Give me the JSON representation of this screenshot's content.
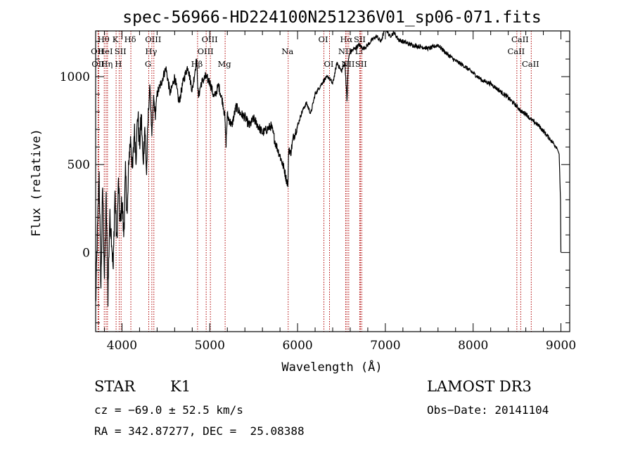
{
  "chart_data": {
    "type": "line",
    "title": "spec-56966-HD224100N251236V01_sp06-071.fits",
    "xlabel": "Wavelength (Å)",
    "ylabel": "Flux (relative)",
    "xlim": [
      3700,
      9100
    ],
    "ylim": [
      -450,
      1260
    ],
    "x_ticks": [
      4000,
      5000,
      6000,
      7000,
      8000,
      9000
    ],
    "y_ticks": [
      0,
      500,
      1000
    ],
    "grid": false,
    "series": [
      {
        "x": [
          3700,
          3720,
          3740,
          3760,
          3780,
          3800,
          3820,
          3840,
          3860,
          3880,
          3900,
          3920,
          3940,
          3960,
          3980,
          4000,
          4020,
          4040,
          4060,
          4080,
          4100,
          4120,
          4140,
          4160,
          4180,
          4200,
          4220,
          4240,
          4260,
          4280,
          4300,
          4320,
          4340,
          4360,
          4380,
          4400,
          4450,
          4500,
          4550,
          4600,
          4650,
          4700,
          4750,
          4800,
          4850,
          4870,
          4900,
          4950,
          5000,
          5050,
          5100,
          5150,
          5170,
          5185,
          5200,
          5250,
          5300,
          5350,
          5400,
          5450,
          5500,
          5550,
          5600,
          5650,
          5700,
          5750,
          5800,
          5850,
          5870,
          5890,
          5900,
          5920,
          5950,
          6000,
          6050,
          6100,
          6150,
          6200,
          6250,
          6300,
          6350,
          6400,
          6450,
          6500,
          6540,
          6563,
          6580,
          6600,
          6650,
          6700,
          6750,
          6800,
          6850,
          6900,
          6950,
          7000,
          7050,
          7100,
          7150,
          7200,
          7300,
          7400,
          7500,
          7600,
          7700,
          7800,
          7900,
          8000,
          8100,
          8200,
          8300,
          8400,
          8500,
          8550,
          8600,
          8650,
          8700,
          8750,
          8800,
          8850,
          8900,
          8950,
          8980,
          8995,
          9000
        ],
        "values": [
          -300,
          100,
          450,
          -200,
          380,
          -150,
          300,
          -250,
          200,
          100,
          -100,
          350,
          50,
          400,
          150,
          300,
          100,
          450,
          200,
          550,
          650,
          450,
          700,
          550,
          800,
          600,
          780,
          500,
          720,
          450,
          800,
          950,
          650,
          880,
          780,
          900,
          970,
          1050,
          900,
          1000,
          850,
          980,
          1060,
          920,
          1100,
          880,
          960,
          1000,
          970,
          880,
          950,
          850,
          780,
          620,
          780,
          720,
          830,
          790,
          770,
          720,
          760,
          720,
          680,
          700,
          720,
          620,
          550,
          470,
          420,
          390,
          600,
          560,
          650,
          720,
          800,
          850,
          790,
          900,
          940,
          980,
          1000,
          960,
          1080,
          1030,
          1080,
          860,
          1100,
          1140,
          1160,
          1180,
          1160,
          1180,
          1210,
          1230,
          1200,
          1280,
          1230,
          1250,
          1210,
          1200,
          1180,
          1170,
          1160,
          1180,
          1130,
          1090,
          1060,
          1020,
          980,
          960,
          920,
          880,
          830,
          800,
          790,
          760,
          740,
          720,
          690,
          660,
          630,
          600,
          560,
          300,
          0
        ]
      }
    ],
    "lines": [
      {
        "label": "Hθ",
        "x": 3798,
        "row": 1
      },
      {
        "label": "OII",
        "x": 3727,
        "row": 2
      },
      {
        "label": "OII",
        "x": 3736,
        "row": 3
      },
      {
        "label": "HeI",
        "x": 3819,
        "row": 2
      },
      {
        "label": "Hη",
        "x": 3835,
        "row": 3
      },
      {
        "label": "K",
        "x": 3933,
        "row": 1
      },
      {
        "label": "SII",
        "x": 3990,
        "row": 2
      },
      {
        "label": "H",
        "x": 3968,
        "row": 3
      },
      {
        "label": "Hδ",
        "x": 4101,
        "row": 1
      },
      {
        "label": "OIII",
        "x": 4363,
        "row": 1
      },
      {
        "label": "Hγ",
        "x": 4340,
        "row": 2
      },
      {
        "label": "G",
        "x": 4305,
        "row": 3
      },
      {
        "label": "OIII",
        "x": 5007,
        "row": 1
      },
      {
        "label": "OIII",
        "x": 4959,
        "row": 2
      },
      {
        "label": "Hβ",
        "x": 4861,
        "row": 3
      },
      {
        "label": "Mg",
        "x": 5175,
        "row": 3
      },
      {
        "label": "Na",
        "x": 5893,
        "row": 2
      },
      {
        "label": "OI",
        "x": 6300,
        "row": 1
      },
      {
        "label": "OI",
        "x": 6364,
        "row": 3
      },
      {
        "label": "Hα",
        "x": 6563,
        "row": 1
      },
      {
        "label": "SII",
        "x": 6716,
        "row": 1
      },
      {
        "label": "NII",
        "x": 6548,
        "row": 2
      },
      {
        "label": "Li",
        "x": 6708,
        "row": 2
      },
      {
        "label": "NII",
        "x": 6583,
        "row": 3
      },
      {
        "label": "SII",
        "x": 6731,
        "row": 3
      },
      {
        "label": "CaII",
        "x": 8542,
        "row": 1
      },
      {
        "label": "CaII",
        "x": 8498,
        "row": 2
      },
      {
        "label": "CaII",
        "x": 8662,
        "row": 3
      }
    ]
  },
  "info": {
    "object_class": "STAR",
    "subclass": "K1",
    "survey": "LAMOST DR3",
    "redshift": "cz = −69.0 ± 52.5 km/s",
    "obs_date": "Obs−Date: 20141104",
    "coords": "RA = 342.87277, DEC =  25.08388"
  }
}
